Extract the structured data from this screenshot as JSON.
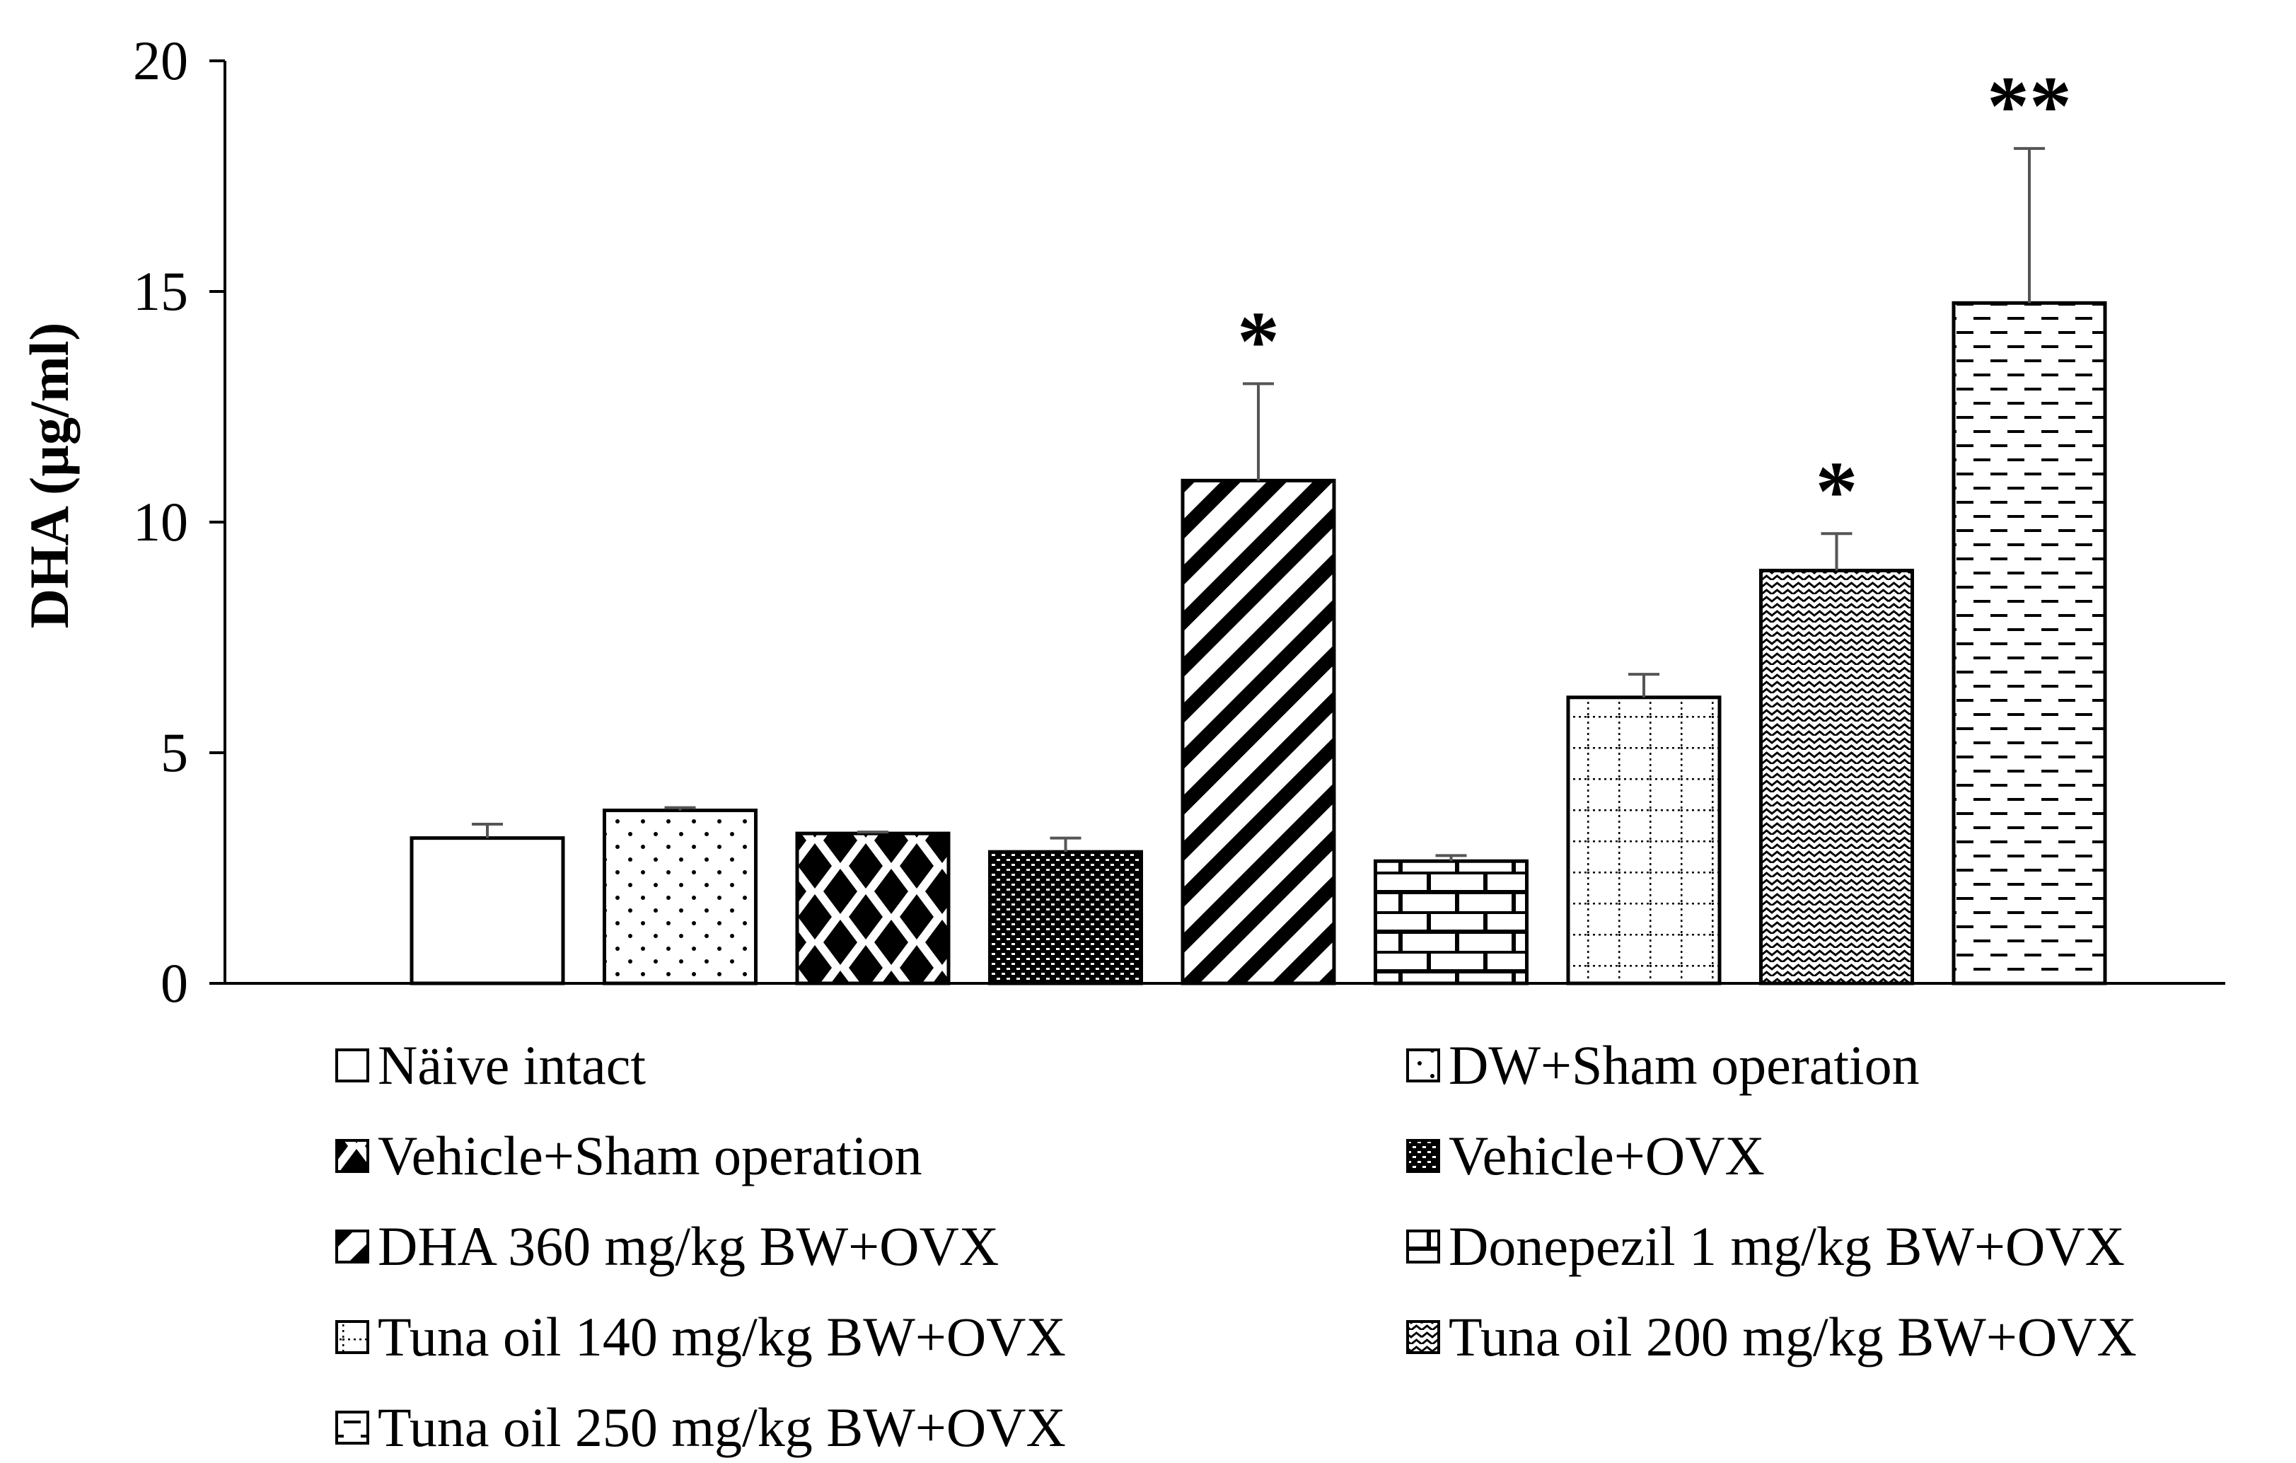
{
  "chart_data": {
    "type": "bar",
    "title": "",
    "xlabel": "",
    "ylabel": "DHA (µg/ml)",
    "ylim": [
      0,
      20
    ],
    "yticks": [
      0,
      5,
      10,
      15,
      20
    ],
    "grid": false,
    "legend_position": "bottom",
    "categories": [
      "Näive intact",
      "DW+Sham operation",
      "Vehicle+Sham operation",
      "Vehicle+OVX",
      "DHA 360 mg/kg BW+OVX",
      "Donepezil 1 mg/kg BW+OVX",
      "Tuna oil 140 mg/kg BW+OVX",
      "Tuna oil 200 mg/kg BW+OVX",
      "Tuna oil 250 mg/kg BW+OVX"
    ],
    "values": [
      3.15,
      3.75,
      3.25,
      2.85,
      10.9,
      2.65,
      6.2,
      8.95,
      14.75
    ],
    "errors": [
      0.3,
      0.06,
      0.03,
      0.3,
      2.1,
      0.12,
      0.5,
      0.8,
      3.35
    ],
    "significance": [
      "",
      "",
      "",
      "",
      "*",
      "",
      "",
      "*",
      "**"
    ],
    "patterns": [
      "white",
      "dots-sparse",
      "diamonds",
      "dense-dots",
      "diagonal-stripes",
      "bricks",
      "dotted-grid",
      "waves",
      "dashes"
    ]
  }
}
